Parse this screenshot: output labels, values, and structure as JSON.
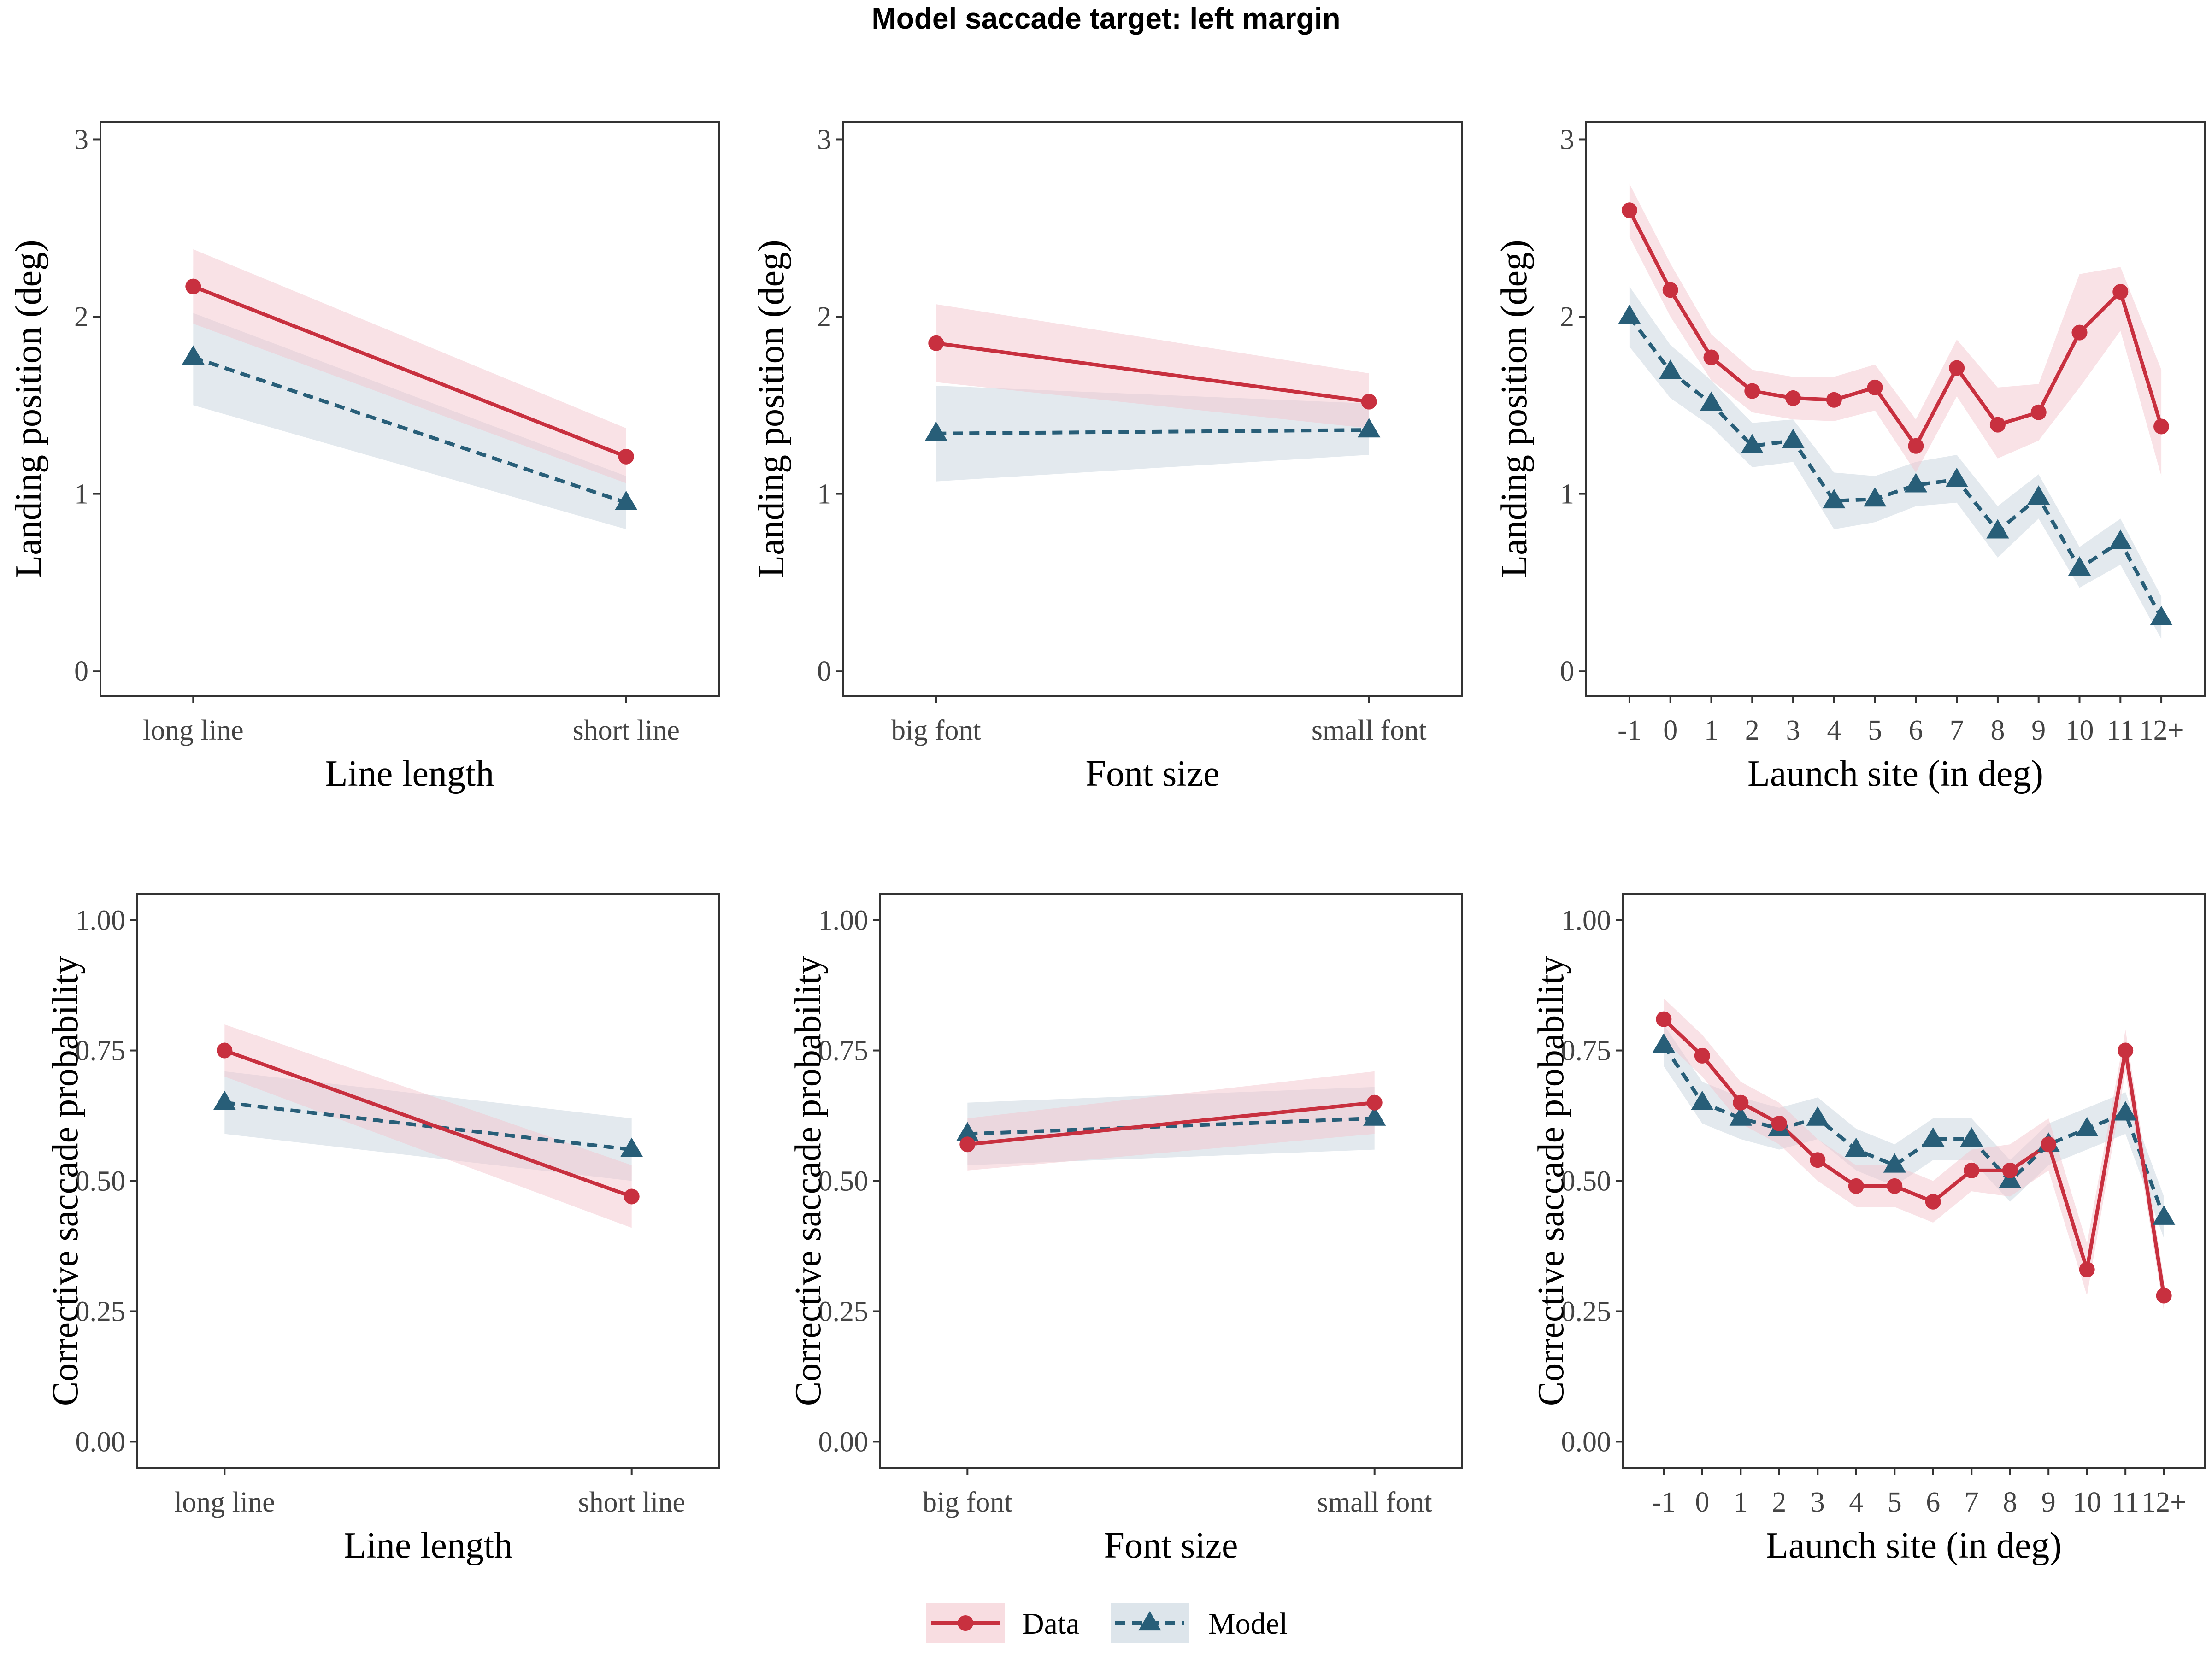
{
  "title": "Model saccade target: left margin",
  "legend": {
    "placement": "bottom",
    "items": [
      {
        "label": "Data",
        "color": "#C8303F",
        "marker": "circle",
        "linestyle": "solid"
      },
      {
        "label": "Model",
        "color": "#285E78",
        "marker": "triangle",
        "linestyle": "dashed"
      }
    ]
  },
  "colors": {
    "data": "#C8303F",
    "model": "#285E78",
    "data_band": "#F4C6CD",
    "model_band": "#C7D4DE"
  },
  "chart_data": [
    {
      "type": "line",
      "xlabel": "Line length",
      "ylabel": "Landing position (deg)",
      "categories": [
        "long line",
        "short line"
      ],
      "ylim": [
        -0.14,
        3.1
      ],
      "yticks": [
        0,
        1,
        2,
        3
      ],
      "yticklabels": [
        "0",
        "1",
        "2",
        "3"
      ],
      "grid": false,
      "series": [
        {
          "name": "Data",
          "values": [
            2.17,
            1.21
          ],
          "lower": [
            1.96,
            1.06
          ],
          "upper": [
            2.38,
            1.37
          ]
        },
        {
          "name": "Model",
          "values": [
            1.77,
            0.95
          ],
          "lower": [
            1.5,
            0.8
          ],
          "upper": [
            2.02,
            1.1
          ]
        }
      ]
    },
    {
      "type": "line",
      "xlabel": "Font size",
      "ylabel": "Landing position (deg)",
      "categories": [
        "big font",
        "small font"
      ],
      "ylim": [
        -0.14,
        3.1
      ],
      "yticks": [
        0,
        1,
        2,
        3
      ],
      "yticklabels": [
        "0",
        "1",
        "2",
        "3"
      ],
      "grid": false,
      "series": [
        {
          "name": "Data",
          "values": [
            1.85,
            1.52
          ],
          "lower": [
            1.63,
            1.37
          ],
          "upper": [
            2.07,
            1.68
          ]
        },
        {
          "name": "Model",
          "values": [
            1.34,
            1.36
          ],
          "lower": [
            1.07,
            1.22
          ],
          "upper": [
            1.61,
            1.51
          ]
        }
      ]
    },
    {
      "type": "line",
      "xlabel": "Launch site (in deg)",
      "ylabel": "Landing position (deg)",
      "categories": [
        "-1",
        "0",
        "1",
        "2",
        "3",
        "4",
        "5",
        "6",
        "7",
        "8",
        "9",
        "10",
        "11",
        "12+"
      ],
      "ylim": [
        -0.14,
        3.1
      ],
      "yticks": [
        0,
        1,
        2,
        3
      ],
      "yticklabels": [
        "0",
        "1",
        "2",
        "3"
      ],
      "grid": false,
      "series": [
        {
          "name": "Data",
          "values": [
            2.6,
            2.15,
            1.77,
            1.58,
            1.54,
            1.53,
            1.6,
            1.27,
            1.71,
            1.39,
            1.46,
            1.91,
            2.14,
            1.38
          ],
          "lower": [
            2.45,
            2.0,
            1.64,
            1.46,
            1.42,
            1.41,
            1.47,
            1.12,
            1.55,
            1.2,
            1.3,
            1.6,
            1.92,
            1.1
          ],
          "upper": [
            2.75,
            2.3,
            1.9,
            1.7,
            1.66,
            1.66,
            1.73,
            1.42,
            1.87,
            1.6,
            1.62,
            2.24,
            2.28,
            1.7
          ]
        },
        {
          "name": "Model",
          "values": [
            2.0,
            1.69,
            1.51,
            1.27,
            1.3,
            0.96,
            0.97,
            1.05,
            1.08,
            0.79,
            0.98,
            0.58,
            0.73,
            0.3
          ],
          "lower": [
            1.83,
            1.54,
            1.38,
            1.15,
            1.18,
            0.8,
            0.84,
            0.93,
            0.95,
            0.64,
            0.86,
            0.47,
            0.6,
            0.18
          ],
          "upper": [
            2.17,
            1.84,
            1.64,
            1.4,
            1.42,
            1.12,
            1.1,
            1.18,
            1.22,
            0.93,
            1.11,
            0.7,
            0.86,
            0.42
          ]
        }
      ]
    },
    {
      "type": "line",
      "xlabel": "Line length",
      "ylabel": "Corrective saccade probability",
      "categories": [
        "long line",
        "short line"
      ],
      "ylim": [
        -0.05,
        1.05
      ],
      "yticks": [
        0,
        0.25,
        0.5,
        0.75,
        1
      ],
      "yticklabels": [
        "0.00",
        "0.25",
        "0.50",
        "0.75",
        "1.00"
      ],
      "grid": false,
      "series": [
        {
          "name": "Data",
          "values": [
            0.75,
            0.47
          ],
          "lower": [
            0.7,
            0.41
          ],
          "upper": [
            0.8,
            0.53
          ]
        },
        {
          "name": "Model",
          "values": [
            0.65,
            0.56
          ],
          "lower": [
            0.59,
            0.5
          ],
          "upper": [
            0.71,
            0.62
          ]
        }
      ]
    },
    {
      "type": "line",
      "xlabel": "Font size",
      "ylabel": "Corrective saccade probability",
      "categories": [
        "big font",
        "small font"
      ],
      "ylim": [
        -0.05,
        1.05
      ],
      "yticks": [
        0,
        0.25,
        0.5,
        0.75,
        1
      ],
      "yticklabels": [
        "0.00",
        "0.25",
        "0.50",
        "0.75",
        "1.00"
      ],
      "grid": false,
      "series": [
        {
          "name": "Data",
          "values": [
            0.57,
            0.65
          ],
          "lower": [
            0.52,
            0.59
          ],
          "upper": [
            0.62,
            0.71
          ]
        },
        {
          "name": "Model",
          "values": [
            0.59,
            0.62
          ],
          "lower": [
            0.53,
            0.56
          ],
          "upper": [
            0.65,
            0.68
          ]
        }
      ]
    },
    {
      "type": "line",
      "xlabel": "Launch site (in deg)",
      "ylabel": "Corrective saccade probability",
      "categories": [
        "-1",
        "0",
        "1",
        "2",
        "3",
        "4",
        "5",
        "6",
        "7",
        "8",
        "9",
        "10",
        "11",
        "12+"
      ],
      "ylim": [
        -0.05,
        1.05
      ],
      "yticks": [
        0,
        0.25,
        0.5,
        0.75,
        1
      ],
      "yticklabels": [
        "0.00",
        "0.25",
        "0.50",
        "0.75",
        "1.00"
      ],
      "grid": false,
      "series": [
        {
          "name": "Data",
          "values": [
            0.81,
            0.74,
            0.65,
            0.61,
            0.54,
            0.49,
            0.49,
            0.46,
            0.52,
            0.52,
            0.57,
            0.33,
            0.75,
            0.28
          ],
          "lower": [
            0.77,
            0.7,
            0.61,
            0.57,
            0.5,
            0.45,
            0.45,
            0.42,
            0.48,
            0.47,
            0.52,
            0.28,
            0.71,
            0.25
          ],
          "upper": [
            0.85,
            0.78,
            0.69,
            0.65,
            0.58,
            0.53,
            0.53,
            0.5,
            0.56,
            0.57,
            0.62,
            0.38,
            0.79,
            0.31
          ]
        },
        {
          "name": "Model",
          "values": [
            0.76,
            0.65,
            0.62,
            0.6,
            0.62,
            0.56,
            0.53,
            0.58,
            0.58,
            0.5,
            0.57,
            0.6,
            0.63,
            0.43
          ],
          "lower": [
            0.72,
            0.61,
            0.58,
            0.56,
            0.58,
            0.52,
            0.49,
            0.54,
            0.54,
            0.46,
            0.53,
            0.56,
            0.59,
            0.39
          ],
          "upper": [
            0.8,
            0.69,
            0.66,
            0.64,
            0.66,
            0.6,
            0.57,
            0.62,
            0.62,
            0.54,
            0.61,
            0.64,
            0.67,
            0.47
          ]
        }
      ]
    }
  ]
}
